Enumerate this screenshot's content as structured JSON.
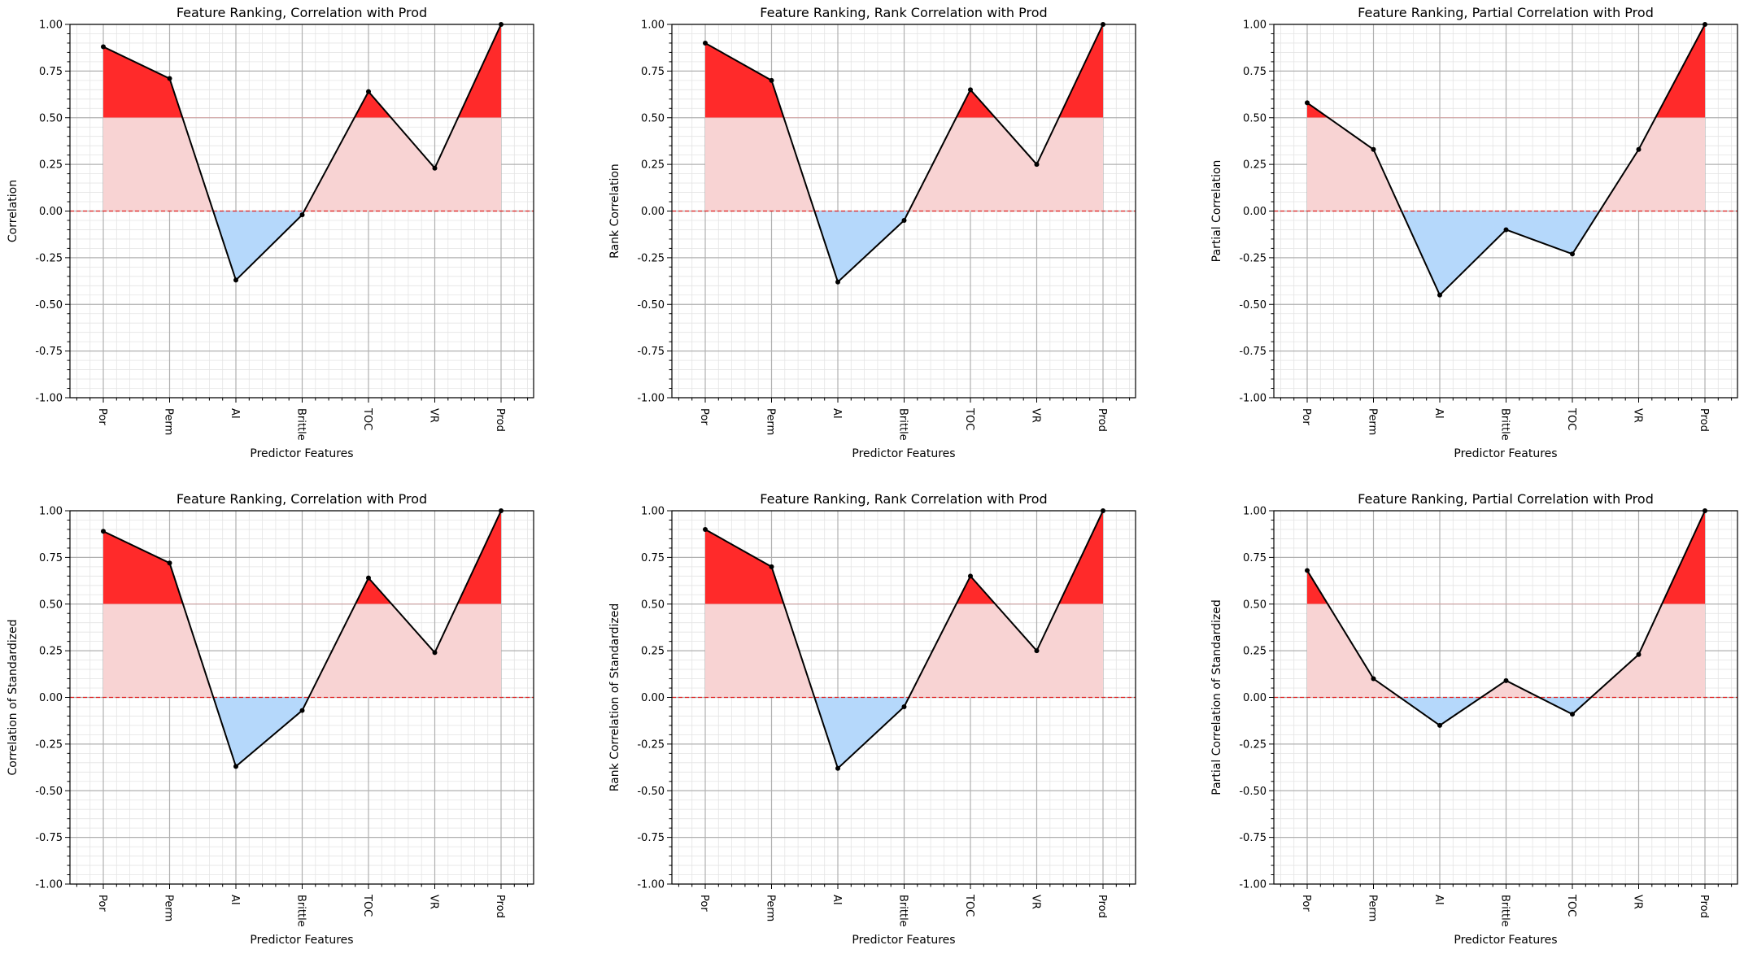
{
  "chart_data": [
    {
      "type": "line",
      "title": "Feature Ranking, Correlation with Prod",
      "xlabel": "Predictor Features",
      "ylabel": "Correlation",
      "categories": [
        "Por",
        "Perm",
        "AI",
        "Brittle",
        "TOC",
        "VR",
        "Prod"
      ],
      "values": [
        0.88,
        0.71,
        -0.37,
        -0.02,
        0.64,
        0.23,
        1.0
      ],
      "ylim": [
        -1.0,
        1.0
      ],
      "yticks": [
        "-1.00",
        "-0.75",
        "-0.50",
        "-0.25",
        "0.00",
        "0.25",
        "0.50",
        "0.75",
        "1.00"
      ],
      "threshold": 0.5,
      "grid": true
    },
    {
      "type": "line",
      "title": "Feature Ranking, Rank Correlation with Prod",
      "xlabel": "Predictor Features",
      "ylabel": "Rank Correlation",
      "categories": [
        "Por",
        "Perm",
        "AI",
        "Brittle",
        "TOC",
        "VR",
        "Prod"
      ],
      "values": [
        0.9,
        0.7,
        -0.38,
        -0.05,
        0.65,
        0.25,
        1.0
      ],
      "ylim": [
        -1.0,
        1.0
      ],
      "yticks": [
        "-1.00",
        "-0.75",
        "-0.50",
        "-0.25",
        "0.00",
        "0.25",
        "0.50",
        "0.75",
        "1.00"
      ],
      "threshold": 0.5,
      "grid": true
    },
    {
      "type": "line",
      "title": "Feature Ranking, Partial Correlation with Prod",
      "xlabel": "Predictor Features",
      "ylabel": "Partial Correlation",
      "categories": [
        "Por",
        "Perm",
        "AI",
        "Brittle",
        "TOC",
        "VR",
        "Prod"
      ],
      "values": [
        0.58,
        0.33,
        -0.45,
        -0.1,
        -0.23,
        0.33,
        1.0
      ],
      "ylim": [
        -1.0,
        1.0
      ],
      "yticks": [
        "-1.00",
        "-0.75",
        "-0.50",
        "-0.25",
        "0.00",
        "0.25",
        "0.50",
        "0.75",
        "1.00"
      ],
      "threshold": 0.5,
      "grid": true
    },
    {
      "type": "line",
      "title": "Feature Ranking, Correlation with Prod",
      "xlabel": "Predictor Features",
      "ylabel": "Correlation of Standardized",
      "categories": [
        "Por",
        "Perm",
        "AI",
        "Brittle",
        "TOC",
        "VR",
        "Prod"
      ],
      "values": [
        0.89,
        0.72,
        -0.37,
        -0.07,
        0.64,
        0.24,
        1.0
      ],
      "ylim": [
        -1.0,
        1.0
      ],
      "yticks": [
        "-1.00",
        "-0.75",
        "-0.50",
        "-0.25",
        "0.00",
        "0.25",
        "0.50",
        "0.75",
        "1.00"
      ],
      "threshold": 0.5,
      "grid": true
    },
    {
      "type": "line",
      "title": "Feature Ranking, Rank Correlation with Prod",
      "xlabel": "Predictor Features",
      "ylabel": "Rank Correlation of Standardized",
      "categories": [
        "Por",
        "Perm",
        "AI",
        "Brittle",
        "TOC",
        "VR",
        "Prod"
      ],
      "values": [
        0.9,
        0.7,
        -0.38,
        -0.05,
        0.65,
        0.25,
        1.0
      ],
      "ylim": [
        -1.0,
        1.0
      ],
      "yticks": [
        "-1.00",
        "-0.75",
        "-0.50",
        "-0.25",
        "0.00",
        "0.25",
        "0.50",
        "0.75",
        "1.00"
      ],
      "threshold": 0.5,
      "grid": true
    },
    {
      "type": "line",
      "title": "Feature Ranking, Partial Correlation with Prod",
      "xlabel": "Predictor Features",
      "ylabel": "Partial Correlation of Standardized",
      "categories": [
        "Por",
        "Perm",
        "AI",
        "Brittle",
        "TOC",
        "VR",
        "Prod"
      ],
      "values": [
        0.68,
        0.1,
        -0.15,
        0.09,
        -0.09,
        0.23,
        1.0
      ],
      "ylim": [
        -1.0,
        1.0
      ],
      "yticks": [
        "-1.00",
        "-0.75",
        "-0.50",
        "-0.25",
        "0.00",
        "0.25",
        "0.50",
        "0.75",
        "1.00"
      ],
      "threshold": 0.5,
      "grid": true
    }
  ],
  "colors": {
    "strong_fill": "#ff2a2a",
    "weak_fill": "#f8d3d3",
    "negative_fill": "#b5d8fb",
    "zero_line": "#e02020",
    "line": "#000000",
    "grid_major": "#b0b0b0",
    "grid_minor": "#e4e4e4"
  }
}
